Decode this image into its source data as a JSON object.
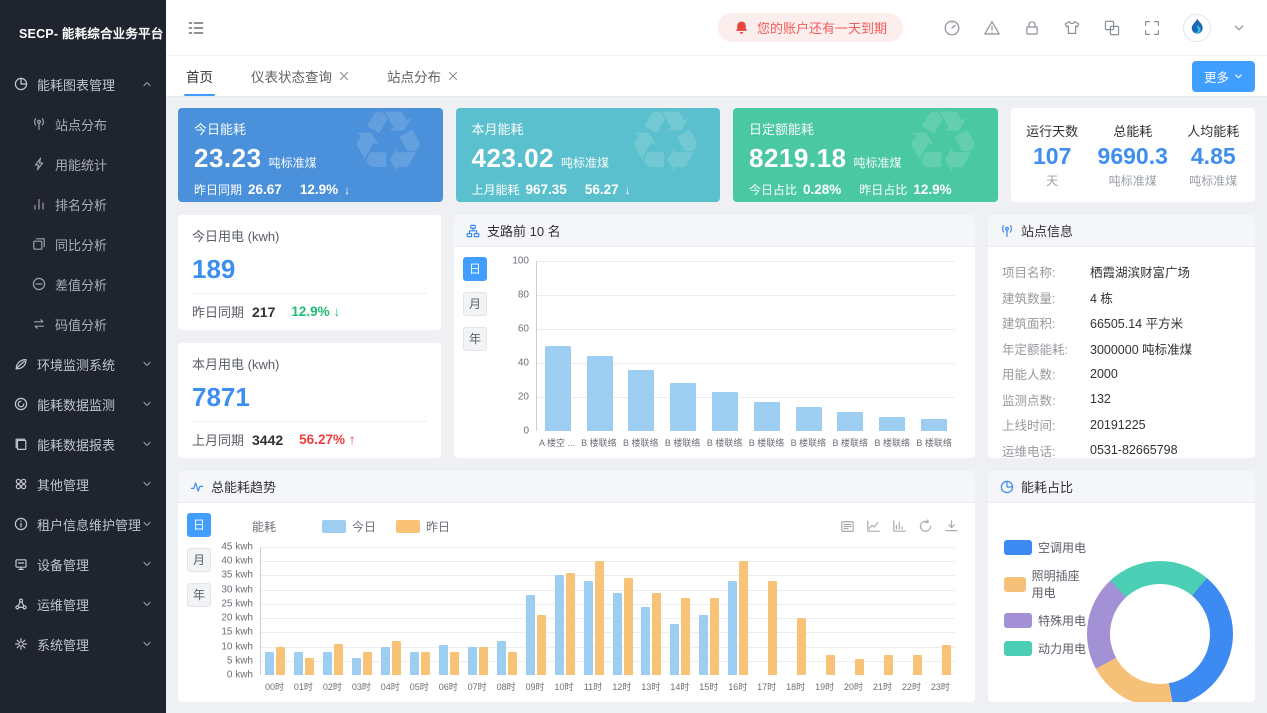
{
  "app": {
    "title": "SECP- 能耗综合业务平台"
  },
  "colors": {
    "accent": "#409eff",
    "sidebar_bg": "#20242e",
    "number_blue": "#3e8ef0",
    "down_green": "#1dbe76",
    "up_red": "#f03e3e",
    "notice_text": "#f15b5b",
    "notice_bg": "#fdeeee",
    "kpi_blue": "#4a90da",
    "kpi_cyan": "#5bc0cd",
    "kpi_green": "#4ac8a2",
    "bar_blue": "#9ecdf2",
    "bar_orange": "#f8c377"
  },
  "sidebar": {
    "groups": [
      {
        "label": "能耗图表管理",
        "icon": "pie-chart-icon",
        "expanded": true,
        "children": [
          {
            "label": "站点分布",
            "icon": "antenna-icon"
          },
          {
            "label": "用能统计",
            "icon": "lightning-icon"
          },
          {
            "label": "排名分析",
            "icon": "ranking-icon"
          },
          {
            "label": "同比分析",
            "icon": "compare-icon"
          },
          {
            "label": "差值分析",
            "icon": "minus-circle-icon"
          },
          {
            "label": "码值分析",
            "icon": "swap-icon"
          }
        ]
      },
      {
        "label": "环境监测系统",
        "icon": "leaf-icon",
        "expanded": false
      },
      {
        "label": "能耗数据监测",
        "icon": "monitor-data-icon",
        "expanded": false
      },
      {
        "label": "能耗数据报表",
        "icon": "report-icon",
        "expanded": false
      },
      {
        "label": "其他管理",
        "icon": "apps-icon",
        "expanded": false
      },
      {
        "label": "租户信息维护管理",
        "icon": "info-icon",
        "expanded": false
      },
      {
        "label": "设备管理",
        "icon": "device-icon",
        "expanded": false
      },
      {
        "label": "运维管理",
        "icon": "ops-icon",
        "expanded": false
      },
      {
        "label": "系统管理",
        "icon": "gear-icon",
        "expanded": false
      }
    ]
  },
  "header": {
    "notice": "您的账户还有一天到期",
    "icons": [
      "gauge-icon",
      "warning-icon",
      "lock-icon",
      "shirt-icon",
      "translate-icon",
      "fullscreen-icon"
    ]
  },
  "tabs": {
    "items": [
      {
        "label": "首页",
        "active": true,
        "closable": false
      },
      {
        "label": "仪表状态查询",
        "active": false,
        "closable": true
      },
      {
        "label": "站点分布",
        "active": false,
        "closable": true
      }
    ],
    "more_label": "更多"
  },
  "kpi": {
    "cards": [
      {
        "title": "今日能耗",
        "value": "23.23",
        "unit": "吨标准煤",
        "bg": "#4a90da",
        "sub": [
          {
            "label": "昨日同期",
            "value": "26.67"
          },
          {
            "label": "",
            "value": "12.9%",
            "arrow": "down"
          }
        ]
      },
      {
        "title": "本月能耗",
        "value": "423.02",
        "unit": "吨标准煤",
        "bg": "#5bc0cd",
        "sub": [
          {
            "label": "上月能耗",
            "value": "967.35"
          },
          {
            "label": "",
            "value": "56.27",
            "arrow": "down"
          }
        ]
      },
      {
        "title": "日定额能耗",
        "value": "8219.18",
        "unit": "吨标准煤",
        "bg": "#4ac8a2",
        "sub": [
          {
            "label": "今日占比",
            "value": "0.28%"
          },
          {
            "label": "昨日占比",
            "value": "12.9%"
          }
        ]
      }
    ],
    "stats": {
      "columns": [
        {
          "label": "运行天数",
          "value": "107",
          "unit": "天"
        },
        {
          "label": "总能耗",
          "value": "9690.3",
          "unit": "吨标准煤"
        },
        {
          "label": "人均能耗",
          "value": "4.85",
          "unit": "吨标准煤"
        }
      ]
    }
  },
  "usage": {
    "cards": [
      {
        "title": "今日用电 (kwh)",
        "value": "189",
        "compare_label": "昨日同期",
        "compare_value": "217",
        "percent": "12.9%",
        "trend": "down"
      },
      {
        "title": "本月用电 (kwh)",
        "value": "7871",
        "compare_label": "上月同期",
        "compare_value": "3442",
        "percent": "56.27%",
        "trend": "up"
      }
    ]
  },
  "site_info": {
    "title": "站点信息",
    "rows": [
      {
        "label": "项目名称:",
        "value": "栖霞湖滨财富广场"
      },
      {
        "label": "建筑数量:",
        "value": "4 栋"
      },
      {
        "label": "建筑面积:",
        "value": "66505.14 平方米"
      },
      {
        "label": "年定额能耗:",
        "value": "3000000 吨标准煤"
      },
      {
        "label": "用能人数:",
        "value": "2000"
      },
      {
        "label": "监测点数:",
        "value": "132"
      },
      {
        "label": "上线时间:",
        "value": "20191225"
      },
      {
        "label": "运维电话:",
        "value": "0531-82665798"
      }
    ]
  },
  "chart_data": [
    {
      "type": "bar",
      "title": "支路前 10 名",
      "period_options": [
        "日",
        "月",
        "年"
      ],
      "active_period": "日",
      "categories": [
        "A 楼空 ...",
        "B 楼联络",
        "B 楼联络",
        "B 楼联络",
        "B 楼联络",
        "B 楼联络",
        "B 楼联络",
        "B 楼联络",
        "B 楼联络",
        "B 楼联络"
      ],
      "values": [
        50,
        44,
        36,
        28,
        23,
        17,
        14,
        11,
        8,
        7
      ],
      "ylim": [
        0,
        100
      ],
      "ytick_step": 20,
      "unit": "",
      "bar_color": "#9ecdf2",
      "grid": true,
      "legend_position": "none"
    },
    {
      "type": "bar",
      "title": "总能耗趋势",
      "axis_label": "能耗",
      "period_options": [
        "日",
        "月",
        "年"
      ],
      "active_period": "日",
      "toolbox_icons": [
        "data-view-icon",
        "line-chart-icon",
        "bar-chart-icon",
        "refresh-icon",
        "download-icon"
      ],
      "categories": [
        "00时",
        "01时",
        "02时",
        "03时",
        "04时",
        "05时",
        "06时",
        "07时",
        "08时",
        "09时",
        "10时",
        "11时",
        "12时",
        "13时",
        "14时",
        "15时",
        "16时",
        "17时",
        "18时",
        "19时",
        "20时",
        "21时",
        "22时",
        "23时"
      ],
      "series": [
        {
          "name": "今日",
          "color": "#9ecdf2",
          "values": [
            8,
            8,
            8,
            6,
            10,
            8,
            10.5,
            10,
            12,
            28,
            35,
            33,
            29,
            24,
            18,
            21,
            33,
            0,
            0,
            0,
            0,
            0,
            0,
            0
          ]
        },
        {
          "name": "昨日",
          "color": "#f8c377",
          "values": [
            10,
            6,
            11,
            8,
            12,
            8,
            8,
            10,
            8,
            21,
            36,
            40,
            34,
            29,
            27,
            27,
            40,
            33,
            20,
            7,
            5.5,
            7,
            7,
            10.5
          ]
        }
      ],
      "ylim": [
        0,
        45
      ],
      "ytick_step": 5,
      "unit": "kwh",
      "grid": true,
      "legend_position": "top"
    },
    {
      "type": "pie",
      "title": "能耗占比",
      "start_angle_deg": 40,
      "slices": [
        {
          "label": "空调用电",
          "value": 36,
          "color": "#3d8af2"
        },
        {
          "label": "照明插座用电",
          "value": 20,
          "color": "#f5c078"
        },
        {
          "label": "特殊用电",
          "value": 21,
          "color": "#a291d4"
        },
        {
          "label": "动力用电",
          "value": 23,
          "color": "#4acfb5"
        }
      ],
      "legend_position": "left"
    }
  ]
}
